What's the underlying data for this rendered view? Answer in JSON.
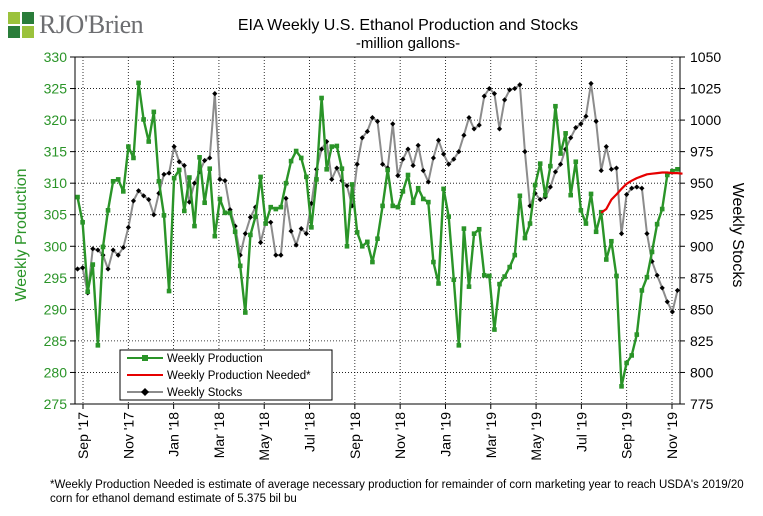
{
  "brand": {
    "name": "RJO'Brien"
  },
  "footnote": "*Weekly Production Needed is estimate of average necessary production for remainder of corn marketing year to reach USDA's 2019/20 corn for ethanol demand estimate of 5.375 bil bu",
  "chart_data": {
    "type": "line",
    "title": "EIA Weekly U.S. Ethanol Production and Stocks",
    "subtitle": "-million gallons-",
    "ylabel": "Weekly Production",
    "y2label": "Weekly Stocks",
    "ylim": [
      275,
      330
    ],
    "yticks": [
      275,
      280,
      285,
      290,
      295,
      300,
      305,
      310,
      315,
      320,
      325,
      330
    ],
    "y2lim": [
      775,
      1050
    ],
    "y2ticks": [
      775,
      800,
      825,
      850,
      875,
      900,
      925,
      950,
      975,
      1000,
      1025,
      1050
    ],
    "xlabels": [
      "Sep '17",
      "Nov '17",
      "Jan '18",
      "Mar '18",
      "May '18",
      "Jul '18",
      "Sep '18",
      "Nov '18",
      "Jan '19",
      "Mar '19",
      "May '19",
      "Jul '19",
      "Sep '19",
      "Nov '19"
    ],
    "week_count": 119,
    "grid": true,
    "legend_position": "bottom-left",
    "colors": {
      "production": "#2a9428",
      "needed": "#e60000",
      "stocks": "#8c8c8c",
      "title_axis_green": "#2a9428"
    },
    "series": [
      {
        "name": "Weekly Production",
        "axis": "left",
        "values": [
          307.8,
          303.8,
          292.8,
          297.1,
          284.3,
          299.9,
          305.7,
          310.3,
          310.6,
          308.7,
          315.8,
          314.0,
          325.9,
          320.1,
          316.6,
          321.3,
          310.3,
          304.9,
          292.9,
          310.8,
          312.1,
          305.6,
          310.9,
          303.2,
          314.1,
          306.9,
          312.3,
          301.6,
          307.5,
          305.3,
          305.3,
          302.3,
          296.9,
          289.5,
          301.8,
          304.7,
          311.0,
          303.6,
          306.2,
          305.9,
          306.2,
          310.0,
          313.5,
          315.1,
          314.0,
          311.0,
          303.0,
          310.6,
          323.5,
          312.2,
          315.8,
          315.9,
          312.3,
          300.0,
          309.8,
          302.2,
          300.0,
          300.7,
          297.5,
          301.2,
          306.4,
          312.1,
          306.4,
          306.2,
          308.7,
          311.3,
          306.9,
          309.2,
          307.5,
          307.0,
          297.5,
          294.1,
          309.1,
          304.7,
          294.7,
          284.3,
          302.8,
          293.6,
          302.0,
          302.7,
          295.4,
          295.3,
          286.8,
          294.0,
          295.2,
          296.7,
          298.6,
          308.0,
          301.3,
          303.6,
          309.7,
          313.1,
          308.1,
          312.7,
          322.2,
          314.7,
          317.9,
          308.1,
          313.4,
          305.7,
          303.6,
          308.3,
          302.3,
          305.4,
          297.9,
          300.8,
          295.3,
          277.8,
          281.5,
          282.7,
          286.0,
          293.0,
          295.1,
          299.1,
          303.5,
          305.9,
          311.3,
          311.9,
          312.2
        ]
      },
      {
        "name": "Weekly Production Needed*",
        "axis": "left",
        "start_index": 103,
        "values": [
          305.3,
          305.9,
          307.4,
          308.2,
          309.1,
          309.9,
          310.4,
          310.8,
          311.1,
          311.4,
          311.5,
          311.6,
          311.7,
          311.7,
          311.6,
          311.6,
          311.5
        ]
      },
      {
        "name": "Weekly Stocks",
        "axis": "right",
        "values": [
          882,
          883,
          863,
          898,
          897,
          893,
          882,
          897,
          893,
          899,
          915,
          936,
          944,
          940,
          937,
          925,
          942,
          957,
          958,
          979,
          967,
          964,
          935,
          950,
          959,
          968,
          970,
          1021,
          953,
          952,
          929,
          916,
          893,
          910,
          923,
          931,
          903,
          919,
          919,
          893,
          893,
          938,
          912,
          901,
          914,
          910,
          934,
          961,
          977,
          983,
          953,
          962,
          952,
          948,
          932,
          965,
          986,
          991,
          1002,
          999,
          965,
          962,
          997,
          956,
          969,
          977,
          964,
          980,
          960,
          951,
          970,
          984,
          973,
          965,
          969,
          975,
          988,
          1002,
          993,
          996,
          1019,
          1025,
          1021,
          993,
          1016,
          1024,
          1025,
          1028,
          975,
          932,
          942,
          937,
          939,
          947,
          959,
          965,
          977,
          986,
          994,
          997,
          1003,
          1029,
          999,
          960,
          979,
          961,
          962,
          910,
          941,
          946,
          947,
          946,
          910,
          888,
          877,
          867,
          856,
          848,
          865
        ]
      }
    ]
  }
}
